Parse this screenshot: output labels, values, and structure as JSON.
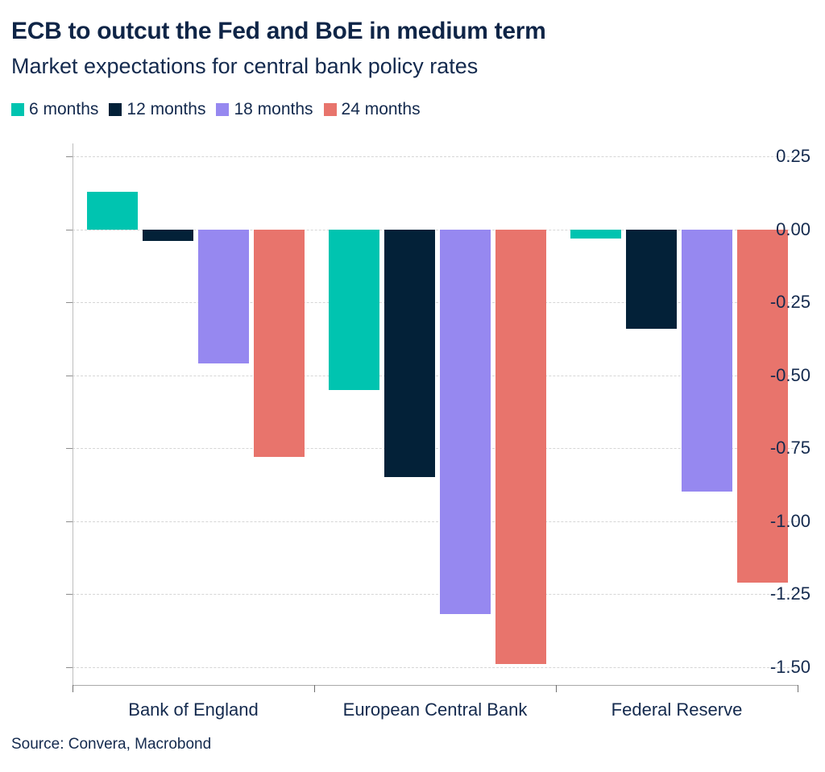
{
  "header": {
    "title": "ECB to outcut the Fed and BoE in medium term",
    "subtitle": "Market expectations for central bank policy rates"
  },
  "source_label": "Source: Convera, Macrobond",
  "colors": {
    "teal": "#00C4B0",
    "navy": "#032138",
    "purple": "#9688F0",
    "salmon": "#E8746C",
    "text": "#142A4E",
    "grid": "#D6D6D6",
    "axis": "#A9A9A9"
  },
  "chart_data": {
    "type": "bar",
    "title": "ECB to outcut the Fed and BoE in medium term",
    "subtitle": "Market expectations for central bank policy rates",
    "categories": [
      "Bank of England",
      "European Central Bank",
      "Federal Reserve"
    ],
    "series": [
      {
        "name": "6 months",
        "color": "#00C4B0",
        "values": [
          0.13,
          -0.55,
          -0.03
        ]
      },
      {
        "name": "12 months",
        "color": "#032138",
        "values": [
          -0.04,
          -0.85,
          -0.34
        ]
      },
      {
        "name": "18 months",
        "color": "#9688F0",
        "values": [
          -0.46,
          -1.32,
          -0.9
        ]
      },
      {
        "name": "24 months",
        "color": "#E8746C",
        "values": [
          -0.78,
          -1.49,
          -1.21
        ]
      }
    ],
    "ytick_labels": [
      "0.25",
      "0.00",
      "-0.25",
      "-0.50",
      "-0.75",
      "-1.00",
      "-1.25",
      "-1.50"
    ],
    "ylim": [
      -1.562,
      0.295
    ],
    "xlabel": "",
    "ylabel": "",
    "grid": "horizontal-dashed",
    "legend_position": "top-left"
  }
}
